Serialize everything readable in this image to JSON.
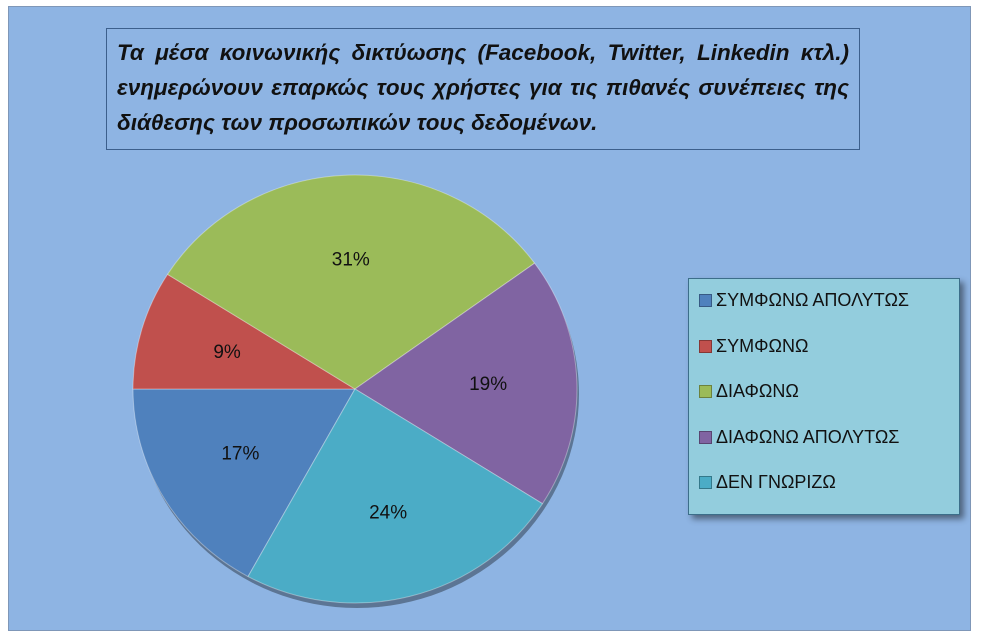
{
  "chart_data": {
    "type": "pie",
    "title": "Τα μέσα κοινωνικής δικτύωσης (Facebook, Twitter, Linkedin κτλ.) ενημερώνουν επαρκώς τους χρήστες για τις πιθανές συνέπειες της διάθεσης των προσωπικών τους  δεδομένων.",
    "categories": [
      "ΣΥΜΦΩΝΩ ΑΠΟΛΥΤΩΣ",
      "ΣΥΜΦΩΝΩ",
      "ΔΙΑΦΩΝΩ",
      "ΔΙΑΦΩΝΩ ΑΠΟΛΥΤΩΣ",
      "ΔΕΝ ΓΝΩΡΙΖΩ"
    ],
    "values": [
      17,
      9,
      31,
      19,
      24
    ],
    "value_labels": [
      "17%",
      "9%",
      "31%",
      "19%",
      "24%"
    ],
    "colors": [
      "#4f81bd",
      "#c0504d",
      "#9bbb59",
      "#8064a2",
      "#4bacc6"
    ],
    "legend": "right"
  }
}
